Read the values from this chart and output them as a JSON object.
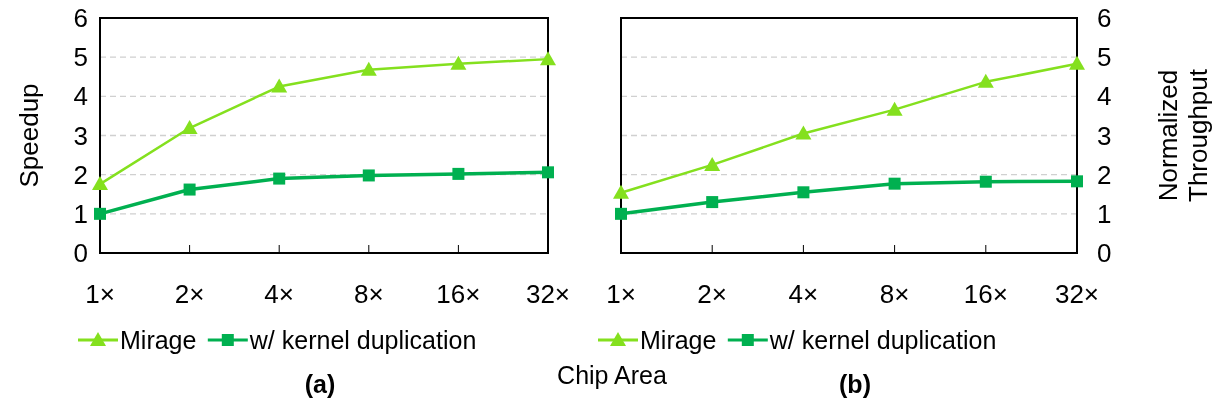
{
  "chart_data": [
    {
      "type": "line",
      "title": "(a)",
      "xlabel": "Chip Area",
      "ylabel": "Speedup",
      "categories": [
        "1×",
        "2×",
        "4×",
        "8×",
        "16×",
        "32×"
      ],
      "ylim": [
        0,
        6
      ],
      "yticks": [
        0,
        1,
        2,
        3,
        4,
        5,
        6
      ],
      "grid": "y",
      "legend": "bottom",
      "series": [
        {
          "name": "Mirage",
          "color": "#84e01e",
          "marker": "triangle",
          "values": [
            1.76,
            3.19,
            4.25,
            4.68,
            4.83,
            4.95
          ]
        },
        {
          "name": "w/ kernel duplication",
          "color": "#00b050",
          "marker": "square",
          "values": [
            1.0,
            1.62,
            1.9,
            1.98,
            2.02,
            2.06
          ]
        }
      ]
    },
    {
      "type": "line",
      "title": "(b)",
      "y2label": "Normalized Throughput",
      "categories": [
        "1×",
        "2×",
        "4×",
        "8×",
        "16×",
        "32×"
      ],
      "y2lim": [
        0,
        6
      ],
      "y2ticks": [
        0,
        1,
        2,
        3,
        4,
        5,
        6
      ],
      "grid": "y",
      "legend": "bottom",
      "series": [
        {
          "name": "Mirage",
          "color": "#84e01e",
          "marker": "triangle",
          "axis": "y2",
          "values": [
            1.54,
            2.25,
            3.05,
            3.66,
            4.37,
            4.83
          ]
        },
        {
          "name": "w/ kernel duplication",
          "color": "#00b050",
          "marker": "square",
          "axis": "y2",
          "values": [
            1.0,
            1.3,
            1.55,
            1.77,
            1.82,
            1.83
          ]
        }
      ]
    }
  ]
}
